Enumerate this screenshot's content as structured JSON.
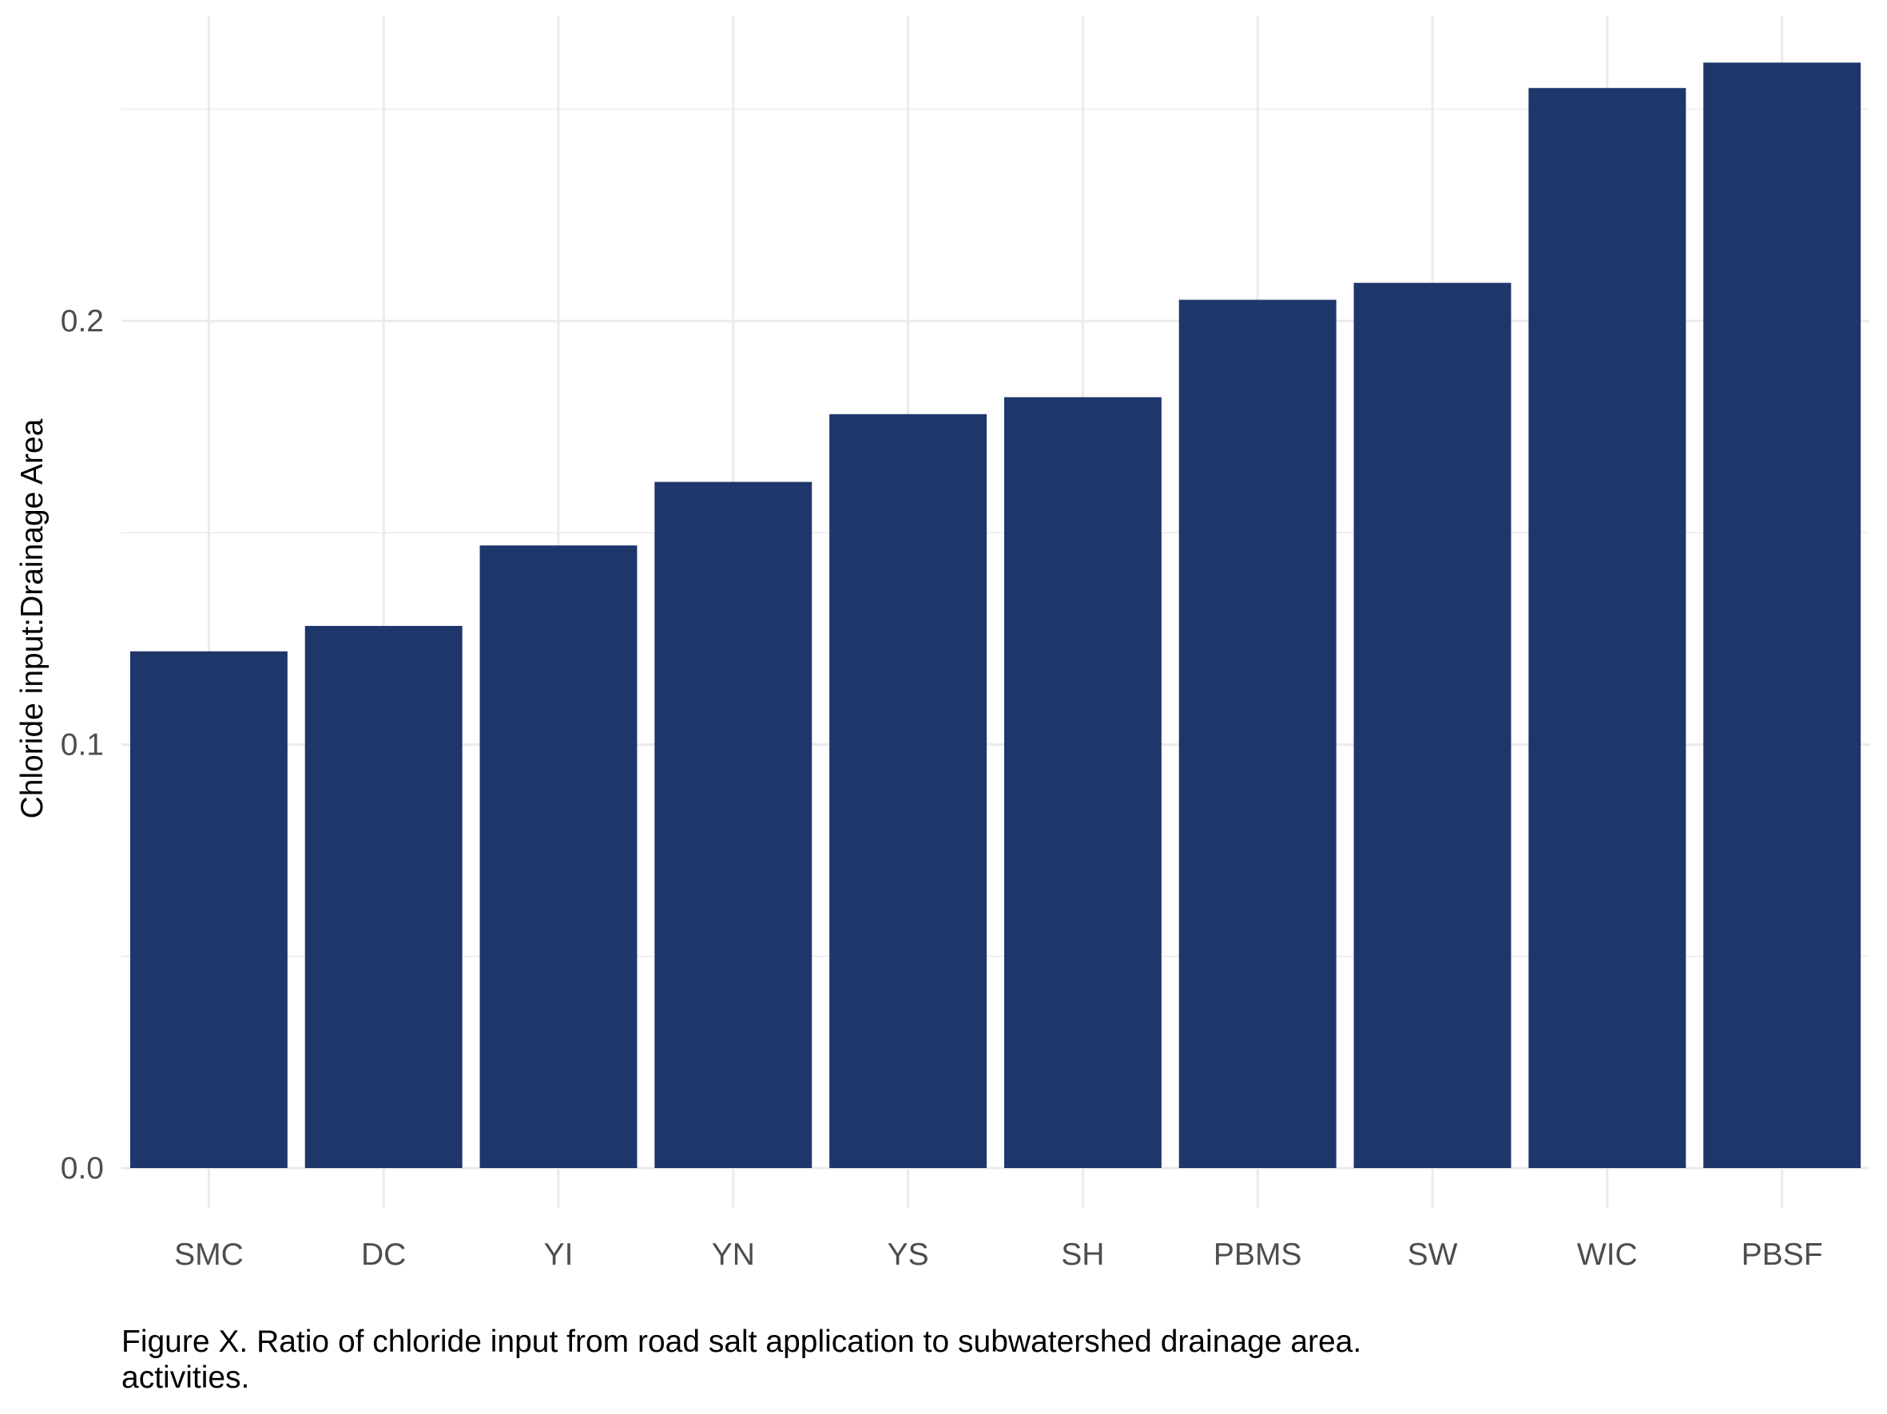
{
  "chart_data": {
    "type": "bar",
    "categories": [
      "SMC",
      "DC",
      "YI",
      "YN",
      "YS",
      "SH",
      "PBMS",
      "SW",
      "WIC",
      "PBSF"
    ],
    "values": [
      0.122,
      0.128,
      0.147,
      0.162,
      0.178,
      0.182,
      0.205,
      0.209,
      0.255,
      0.261
    ],
    "title": "",
    "xlabel": "",
    "ylabel": "Chloride input:Drainage Area",
    "ylim": [
      0,
      0.27
    ],
    "y_ticks": [
      0.0,
      0.1,
      0.2
    ],
    "y_tick_labels": [
      "0.0",
      "0.1",
      "0.2"
    ],
    "grid": true,
    "legend": "none",
    "colors": {
      "bar": "#1f366b",
      "grid": "#ebebeb"
    }
  },
  "caption": {
    "line1": "Figure X. Ratio of chloride input from road salt application to subwatershed drainage area.",
    "line2": "activities."
  }
}
